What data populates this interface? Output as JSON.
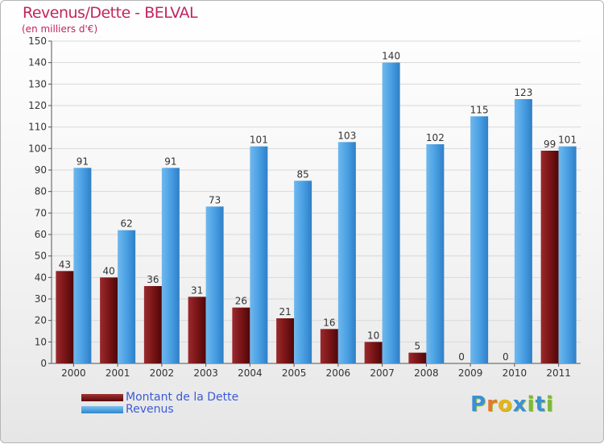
{
  "chart_data": {
    "type": "bar",
    "title": "Revenus/Dette - BELVAL",
    "subtitle": "(en milliers d'€)",
    "categories": [
      "2000",
      "2001",
      "2002",
      "2003",
      "2004",
      "2005",
      "2006",
      "2007",
      "2008",
      "2009",
      "2010",
      "2011"
    ],
    "series": [
      {
        "name": "Montant de la Dette",
        "color": "#7a1517",
        "values": [
          43,
          40,
          36,
          31,
          26,
          21,
          16,
          10,
          5,
          0,
          0,
          99
        ]
      },
      {
        "name": "Revenus",
        "color": "#4aa0e3",
        "values": [
          91,
          62,
          91,
          73,
          101,
          85,
          103,
          140,
          102,
          115,
          123,
          101
        ]
      }
    ],
    "ylim": [
      0,
      150
    ],
    "yticks": [
      0,
      10,
      20,
      30,
      40,
      50,
      60,
      70,
      80,
      90,
      100,
      110,
      120,
      130,
      140,
      150
    ],
    "grid": true,
    "legend": "bottom-left"
  },
  "legend": {
    "debt_label": "Montant de la Dette",
    "revenue_label": "Revenus"
  },
  "brand": {
    "letters": [
      "P",
      "r",
      "o",
      "x",
      "i",
      "t",
      "i"
    ],
    "colors": [
      "#3a8fd6",
      "#e8762c",
      "#e8b21f",
      "#3a8fd6",
      "#7cb83b",
      "#3a8fd6",
      "#7cb83b"
    ]
  }
}
